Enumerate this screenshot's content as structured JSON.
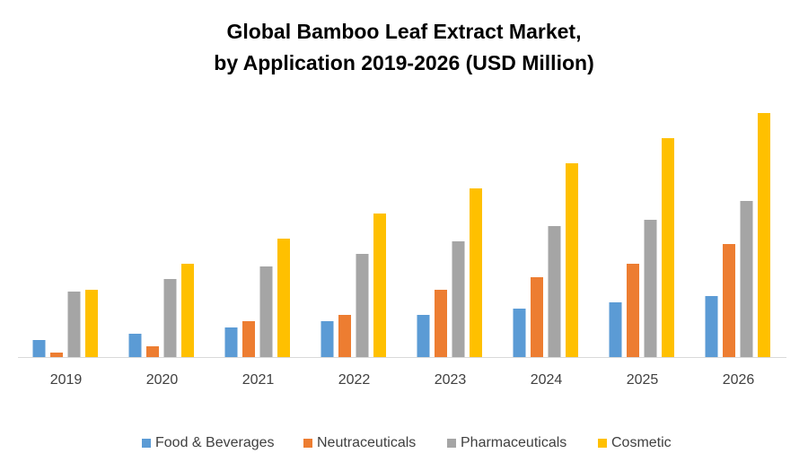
{
  "chart_data": {
    "type": "bar",
    "title": [
      "Global Bamboo Leaf Extract Market,",
      "by Application 2019-2026 (USD Million)"
    ],
    "categories": [
      "2019",
      "2020",
      "2021",
      "2022",
      "2023",
      "2024",
      "2025",
      "2026"
    ],
    "series": [
      {
        "name": "Food & Beverages",
        "color": "#5b9bd5",
        "values": [
          19,
          26,
          33,
          40,
          47,
          54,
          61,
          68
        ]
      },
      {
        "name": "Neutraceuticals",
        "color": "#ed7d31",
        "values": [
          5,
          12,
          40,
          47,
          75,
          89,
          104,
          126
        ]
      },
      {
        "name": "Pharmaceuticals",
        "color": "#a5a5a5",
        "values": [
          73,
          87,
          101,
          115,
          129,
          146,
          153,
          174
        ]
      },
      {
        "name": "Cosmetic",
        "color": "#ffc000",
        "values": [
          75,
          104,
          132,
          160,
          188,
          216,
          244,
          272
        ]
      }
    ],
    "legend": "bottom"
  }
}
